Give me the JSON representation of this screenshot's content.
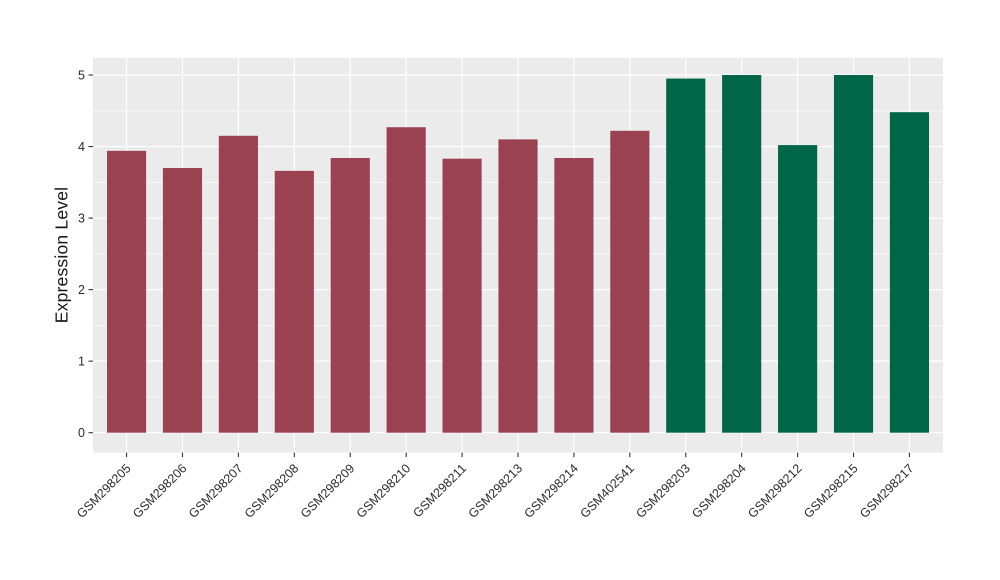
{
  "chart_data": {
    "type": "bar",
    "title": "",
    "xlabel": "",
    "ylabel": "Expression Level",
    "ylim": [
      0,
      5
    ],
    "yticks": [
      "0",
      "1",
      "2",
      "3",
      "4",
      "5"
    ],
    "minor_yticks": [
      0.5,
      1.5,
      2.5,
      3.5,
      4.5
    ],
    "grid": "on",
    "legend": "none",
    "categories": [
      "GSM298205",
      "GSM298206",
      "GSM298207",
      "GSM298208",
      "GSM298209",
      "GSM298210",
      "GSM298211",
      "GSM298213",
      "GSM298214",
      "GSM402541",
      "GSM298203",
      "GSM298204",
      "GSM298212",
      "GSM298215",
      "GSM298217"
    ],
    "values": [
      3.94,
      3.7,
      4.15,
      3.66,
      3.84,
      4.27,
      3.83,
      4.1,
      3.84,
      4.22,
      4.95,
      5.0,
      4.02,
      5.0,
      4.48
    ],
    "bar_colors": [
      "#9a4250",
      "#9a4250",
      "#9a4250",
      "#9a4250",
      "#9a4250",
      "#9a4250",
      "#9a4250",
      "#9a4250",
      "#9a4250",
      "#9a4250",
      "#006647",
      "#006647",
      "#006647",
      "#006647",
      "#006647"
    ],
    "colors": {
      "figure_bg": "#ffffff",
      "panel_bg": "#ebebeb",
      "grid": "#ffffff",
      "group_left_bar": "#9a4250",
      "group_right_bar": "#006647",
      "tick_mark": "#333333",
      "tick_label": "#2b2b2b",
      "axis_title": "#1a1a1a"
    }
  }
}
